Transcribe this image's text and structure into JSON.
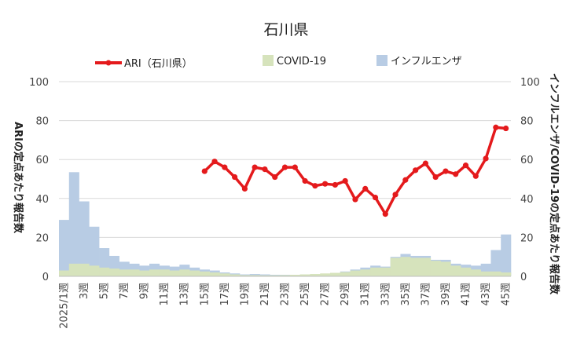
{
  "chart_data": {
    "type": "bar+line",
    "title": "石川県",
    "legend": [
      {
        "name": "ARI（石川県）",
        "kind": "line",
        "color": "#e41a1c"
      },
      {
        "name": "COVID-19",
        "kind": "area",
        "color": "#d6e3bc"
      },
      {
        "name": "インフルエンザ",
        "kind": "area",
        "color": "#b8cce4"
      }
    ],
    "ylabel_left": "ARIの定点あたり報告数",
    "ylabel_right": "インフルエンザ/COVID-19の定点あたり報告数",
    "ylim": [
      0,
      100
    ],
    "yticks": [
      "0",
      "20",
      "40",
      "60",
      "80",
      "100"
    ],
    "tick_labels": [
      "2025/1週",
      "3週",
      "5週",
      "7週",
      "9週",
      "11週",
      "13週",
      "15週",
      "17週",
      "19週",
      "21週",
      "23週",
      "25週",
      "27週",
      "29週",
      "31週",
      "33週",
      "35週",
      "37週",
      "39週",
      "41週",
      "43週",
      "45週"
    ],
    "weeks": [
      1,
      2,
      3,
      4,
      5,
      6,
      7,
      8,
      9,
      10,
      11,
      12,
      13,
      14,
      15,
      16,
      17,
      18,
      19,
      20,
      21,
      22,
      23,
      24,
      25,
      26,
      27,
      28,
      29,
      30,
      31,
      32,
      33,
      34,
      35,
      36,
      37,
      38,
      39,
      40,
      41,
      42,
      43,
      44,
      45
    ],
    "series": [
      {
        "name": "インフルエンザ",
        "values": [
          29,
          53.5,
          38.5,
          25.5,
          14.5,
          10.5,
          7.5,
          6.5,
          5.5,
          6.5,
          5.5,
          5.0,
          6.0,
          4.5,
          3.5,
          3.0,
          2.0,
          1.5,
          1.0,
          1.2,
          1.0,
          0.8,
          0.8,
          0.8,
          1.0,
          1.0,
          1.2,
          1.5,
          2.5,
          3.5,
          4.5,
          5.5,
          5.0,
          10.0,
          11.5,
          10.5,
          10.5,
          8.5,
          8.5,
          6.5,
          6.0,
          5.5,
          6.5,
          13.5,
          21.5
        ]
      },
      {
        "name": "COVID-19",
        "values": [
          3,
          6.5,
          6.5,
          5.5,
          4.5,
          4.0,
          3.5,
          3.5,
          3.0,
          3.5,
          3.5,
          3.0,
          3.5,
          3.0,
          2.5,
          2.0,
          1.5,
          1.0,
          0.6,
          0.6,
          0.5,
          0.5,
          0.6,
          0.8,
          1.0,
          1.2,
          1.5,
          1.8,
          2.2,
          3.0,
          3.5,
          4.5,
          4.5,
          9.5,
          10.0,
          9.5,
          9.5,
          8.0,
          7.5,
          5.5,
          4.5,
          3.5,
          2.5,
          2.5,
          2.0
        ]
      },
      {
        "name": "ARI（石川県）",
        "start_week": 15,
        "values": [
          54,
          59,
          56,
          51,
          45,
          56,
          55,
          51,
          56,
          56,
          49,
          46.5,
          47.5,
          47,
          49,
          39.5,
          45,
          40.5,
          32,
          42,
          49.5,
          54.5,
          58,
          51,
          54,
          52.5,
          57,
          51.5,
          60.5,
          76.5,
          76
        ]
      }
    ]
  }
}
